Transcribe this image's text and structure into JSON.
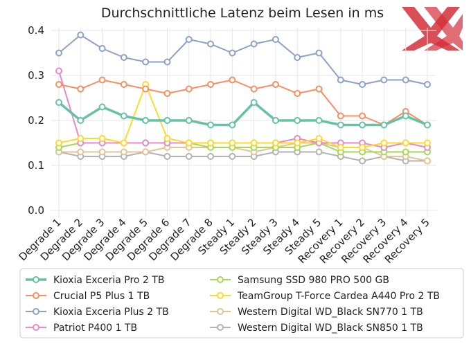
{
  "chart_data": {
    "type": "line",
    "title": "Durchschnittliche Latenz beim Lesen in ms",
    "xlabel": "",
    "ylabel": "",
    "ylim": [
      0.0,
      0.4
    ],
    "yticks": [
      "0.0",
      "0.1",
      "0.2",
      "0.3",
      "0.4"
    ],
    "grid": true,
    "legend_position": "bottom",
    "logo": "XX",
    "categories": [
      "Degrade 1",
      "Degrade 2",
      "Degrade 3",
      "Degrade 4",
      "Degrade 5",
      "Degrade 6",
      "Degrade 7",
      "Degrade 8",
      "Steady 1",
      "Steady 2",
      "Steady 3",
      "Steady 4",
      "Steady 5",
      "Recovery 1",
      "Recovery 2",
      "Recovery 3",
      "Recovery 4",
      "Recovery 5"
    ],
    "series": [
      {
        "name": "Kioxia Exceria Pro 2 TB",
        "color": "#66c2a5",
        "bold": true,
        "values": [
          0.24,
          0.2,
          0.23,
          0.21,
          0.2,
          0.2,
          0.2,
          0.19,
          0.19,
          0.24,
          0.2,
          0.2,
          0.2,
          0.19,
          0.19,
          0.19,
          0.21,
          0.19
        ]
      },
      {
        "name": "Crucial P5 Plus 1 TB",
        "color": "#fc8d62",
        "values": [
          0.28,
          0.27,
          0.29,
          0.28,
          0.27,
          0.26,
          0.27,
          0.28,
          0.29,
          0.27,
          0.28,
          0.26,
          0.27,
          0.21,
          0.21,
          0.19,
          0.22,
          0.19
        ]
      },
      {
        "name": "Kioxia Exceria Plus 2 TB",
        "color": "#8da0cb",
        "values": [
          0.35,
          0.39,
          0.36,
          0.34,
          0.33,
          0.33,
          0.38,
          0.37,
          0.35,
          0.37,
          0.38,
          0.34,
          0.35,
          0.29,
          0.28,
          0.29,
          0.29,
          0.28
        ]
      },
      {
        "name": "Patriot P400 1 TB",
        "color": "#e78ac3",
        "values": [
          0.31,
          0.15,
          0.15,
          0.15,
          0.15,
          0.15,
          0.15,
          0.15,
          0.15,
          0.15,
          0.15,
          0.16,
          0.15,
          0.15,
          0.15,
          0.14,
          0.15,
          0.14
        ]
      },
      {
        "name": "Samsung SSD 980 PRO 500 GB",
        "color": "#a6d854",
        "values": [
          0.14,
          0.15,
          0.15,
          0.15,
          0.15,
          0.15,
          0.15,
          0.14,
          0.14,
          0.14,
          0.14,
          0.14,
          0.15,
          0.13,
          0.13,
          0.13,
          0.13,
          0.13
        ]
      },
      {
        "name": "TeamGroup T-Force Cardea A440 Pro 2 TB",
        "color": "#ffd92f",
        "values": [
          0.15,
          0.16,
          0.16,
          0.15,
          0.28,
          0.16,
          0.15,
          0.15,
          0.15,
          0.15,
          0.15,
          0.15,
          0.16,
          0.14,
          0.14,
          0.15,
          0.15,
          0.15
        ]
      },
      {
        "name": "Western Digital WD_Black SN770 1 TB",
        "color": "#e5c494",
        "values": [
          0.13,
          0.13,
          0.13,
          0.13,
          0.13,
          0.14,
          0.14,
          0.14,
          0.14,
          0.13,
          0.14,
          0.15,
          0.15,
          0.14,
          0.14,
          0.12,
          0.12,
          0.11
        ]
      },
      {
        "name": "Western Digital WD_Black SN850 1 TB",
        "color": "#b3b3b3",
        "values": [
          0.13,
          0.12,
          0.12,
          0.12,
          0.13,
          0.12,
          0.12,
          0.12,
          0.12,
          0.12,
          0.13,
          0.13,
          0.13,
          0.12,
          0.11,
          0.12,
          0.11,
          0.11
        ]
      }
    ]
  }
}
